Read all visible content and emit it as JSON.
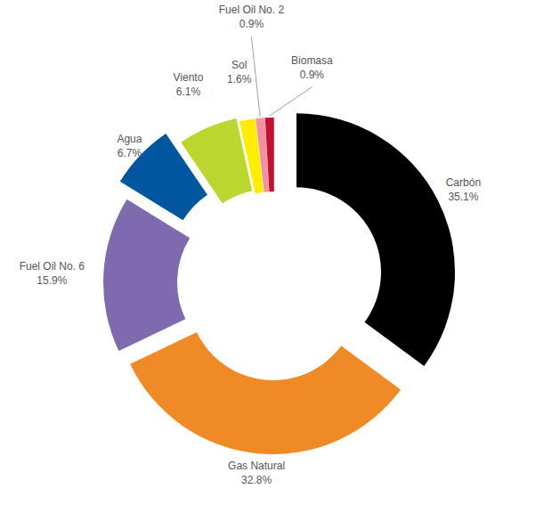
{
  "chart_data": {
    "type": "pie",
    "categories": [
      "Carbón",
      "Gas Natural",
      "Fuel Oil No. 6",
      "Agua",
      "Viento",
      "Sol",
      "Fuel Oil No. 2",
      "Biomasa"
    ],
    "values": [
      35.1,
      32.8,
      15.9,
      6.7,
      6.1,
      1.6,
      0.9,
      0.9
    ],
    "value_labels": [
      "35.1%",
      "32.8%",
      "15.9%",
      "6.7%",
      "6.1%",
      "1.6%",
      "0.9%",
      "0.9%"
    ],
    "colors": [
      "#000000",
      "#f08a24",
      "#7e6aae",
      "#0057a0",
      "#bcd630",
      "#ffed00",
      "#f4909f",
      "#c8102e"
    ],
    "data_labels": true
  }
}
